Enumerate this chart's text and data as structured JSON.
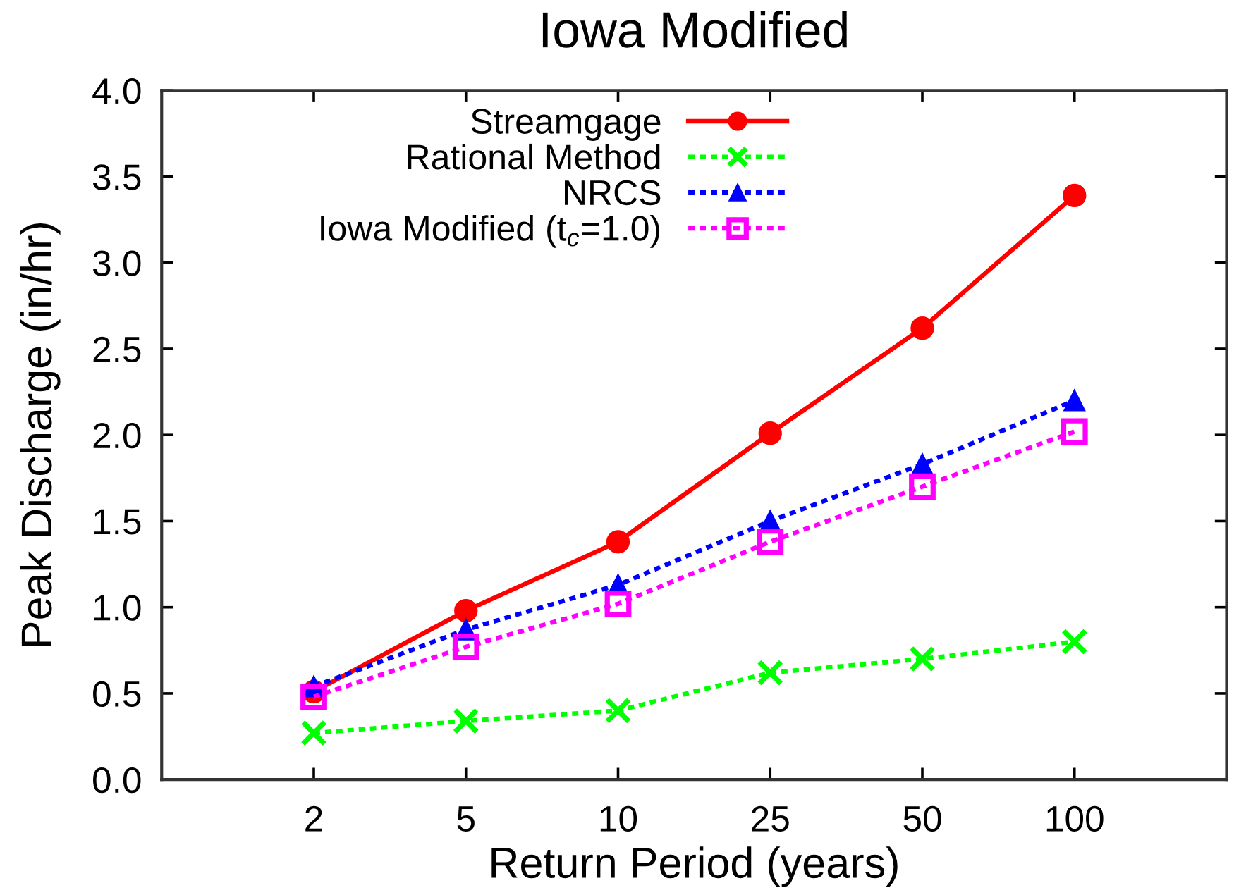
{
  "chart_data": {
    "type": "line",
    "title": "Iowa Modified",
    "xlabel": "Return Period (years)",
    "ylabel": "Peak Discharge (in/hr)",
    "categories": [
      "2",
      "5",
      "10",
      "25",
      "50",
      "100"
    ],
    "series": [
      {
        "name": "Streamgage",
        "color": "#ff0000",
        "marker": "circle",
        "line_style": "solid",
        "values": [
          0.51,
          0.98,
          1.38,
          2.01,
          2.62,
          3.39
        ]
      },
      {
        "name": "Rational Method",
        "color": "#00ff00",
        "marker": "cross",
        "line_style": "dotted",
        "values": [
          0.27,
          0.34,
          0.4,
          0.62,
          0.7,
          0.8
        ]
      },
      {
        "name": "NRCS",
        "color": "#0000ff",
        "marker": "triangle",
        "line_style": "dotted",
        "values": [
          0.54,
          0.87,
          1.13,
          1.5,
          1.83,
          2.2
        ]
      },
      {
        "name": "Iowa Modified (t$_{c}$=1.0)",
        "color": "#ff00ff",
        "marker": "square",
        "line_style": "dotted",
        "values": [
          0.48,
          0.77,
          1.02,
          1.38,
          1.7,
          2.02
        ]
      }
    ],
    "ylim": [
      0,
      4
    ],
    "yticks": [
      {
        "value": 0,
        "label": "0.0"
      },
      0.5,
      {
        "value": 1,
        "label": "1.0"
      },
      1.5,
      {
        "value": 2,
        "label": "2.0"
      },
      2.5,
      {
        "value": 3,
        "label": "3.0"
      },
      3.5,
      {
        "value": 4,
        "label": "4.0"
      }
    ],
    "legend": "top left"
  }
}
